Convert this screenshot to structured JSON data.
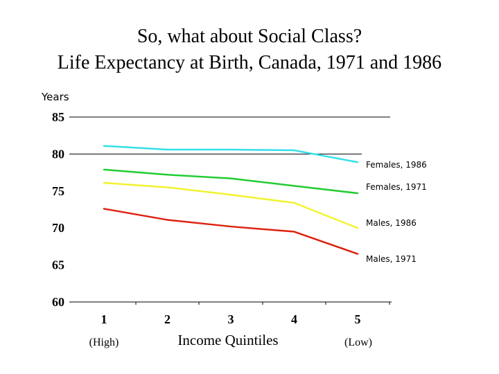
{
  "header": {
    "title_line1": "So, what about Social Class?",
    "title_line2": "Life Expectancy at Birth, Canada, 1971 and 1986"
  },
  "chart_data": {
    "type": "line",
    "ylabel": "Years",
    "xlabel": "Income Quintiles",
    "x": [
      1,
      2,
      3,
      4,
      5
    ],
    "x_tick_labels": [
      "1",
      "2",
      "3",
      "4",
      "5"
    ],
    "x_end_notes": {
      "first": "(High)",
      "last": "(Low)"
    },
    "ylim": [
      60,
      85
    ],
    "y_ticks": [
      85,
      80,
      75,
      70,
      65,
      60
    ],
    "gridlines": [
      85,
      80
    ],
    "series": [
      {
        "name": "Females, 1986",
        "color": "#33e0e8",
        "values": [
          81.1,
          80.6,
          80.6,
          80.5,
          78.9
        ]
      },
      {
        "name": "Females, 1971",
        "color": "#22cc33",
        "values": [
          77.9,
          77.2,
          76.7,
          75.7,
          74.7
        ]
      },
      {
        "name": "Males, 1986",
        "color": "#f2f230",
        "values": [
          76.1,
          75.5,
          74.5,
          73.4,
          70.0
        ]
      },
      {
        "name": "Males, 1971",
        "color": "#dd2211",
        "values": [
          72.6,
          71.1,
          70.2,
          69.5,
          66.5
        ]
      }
    ]
  }
}
